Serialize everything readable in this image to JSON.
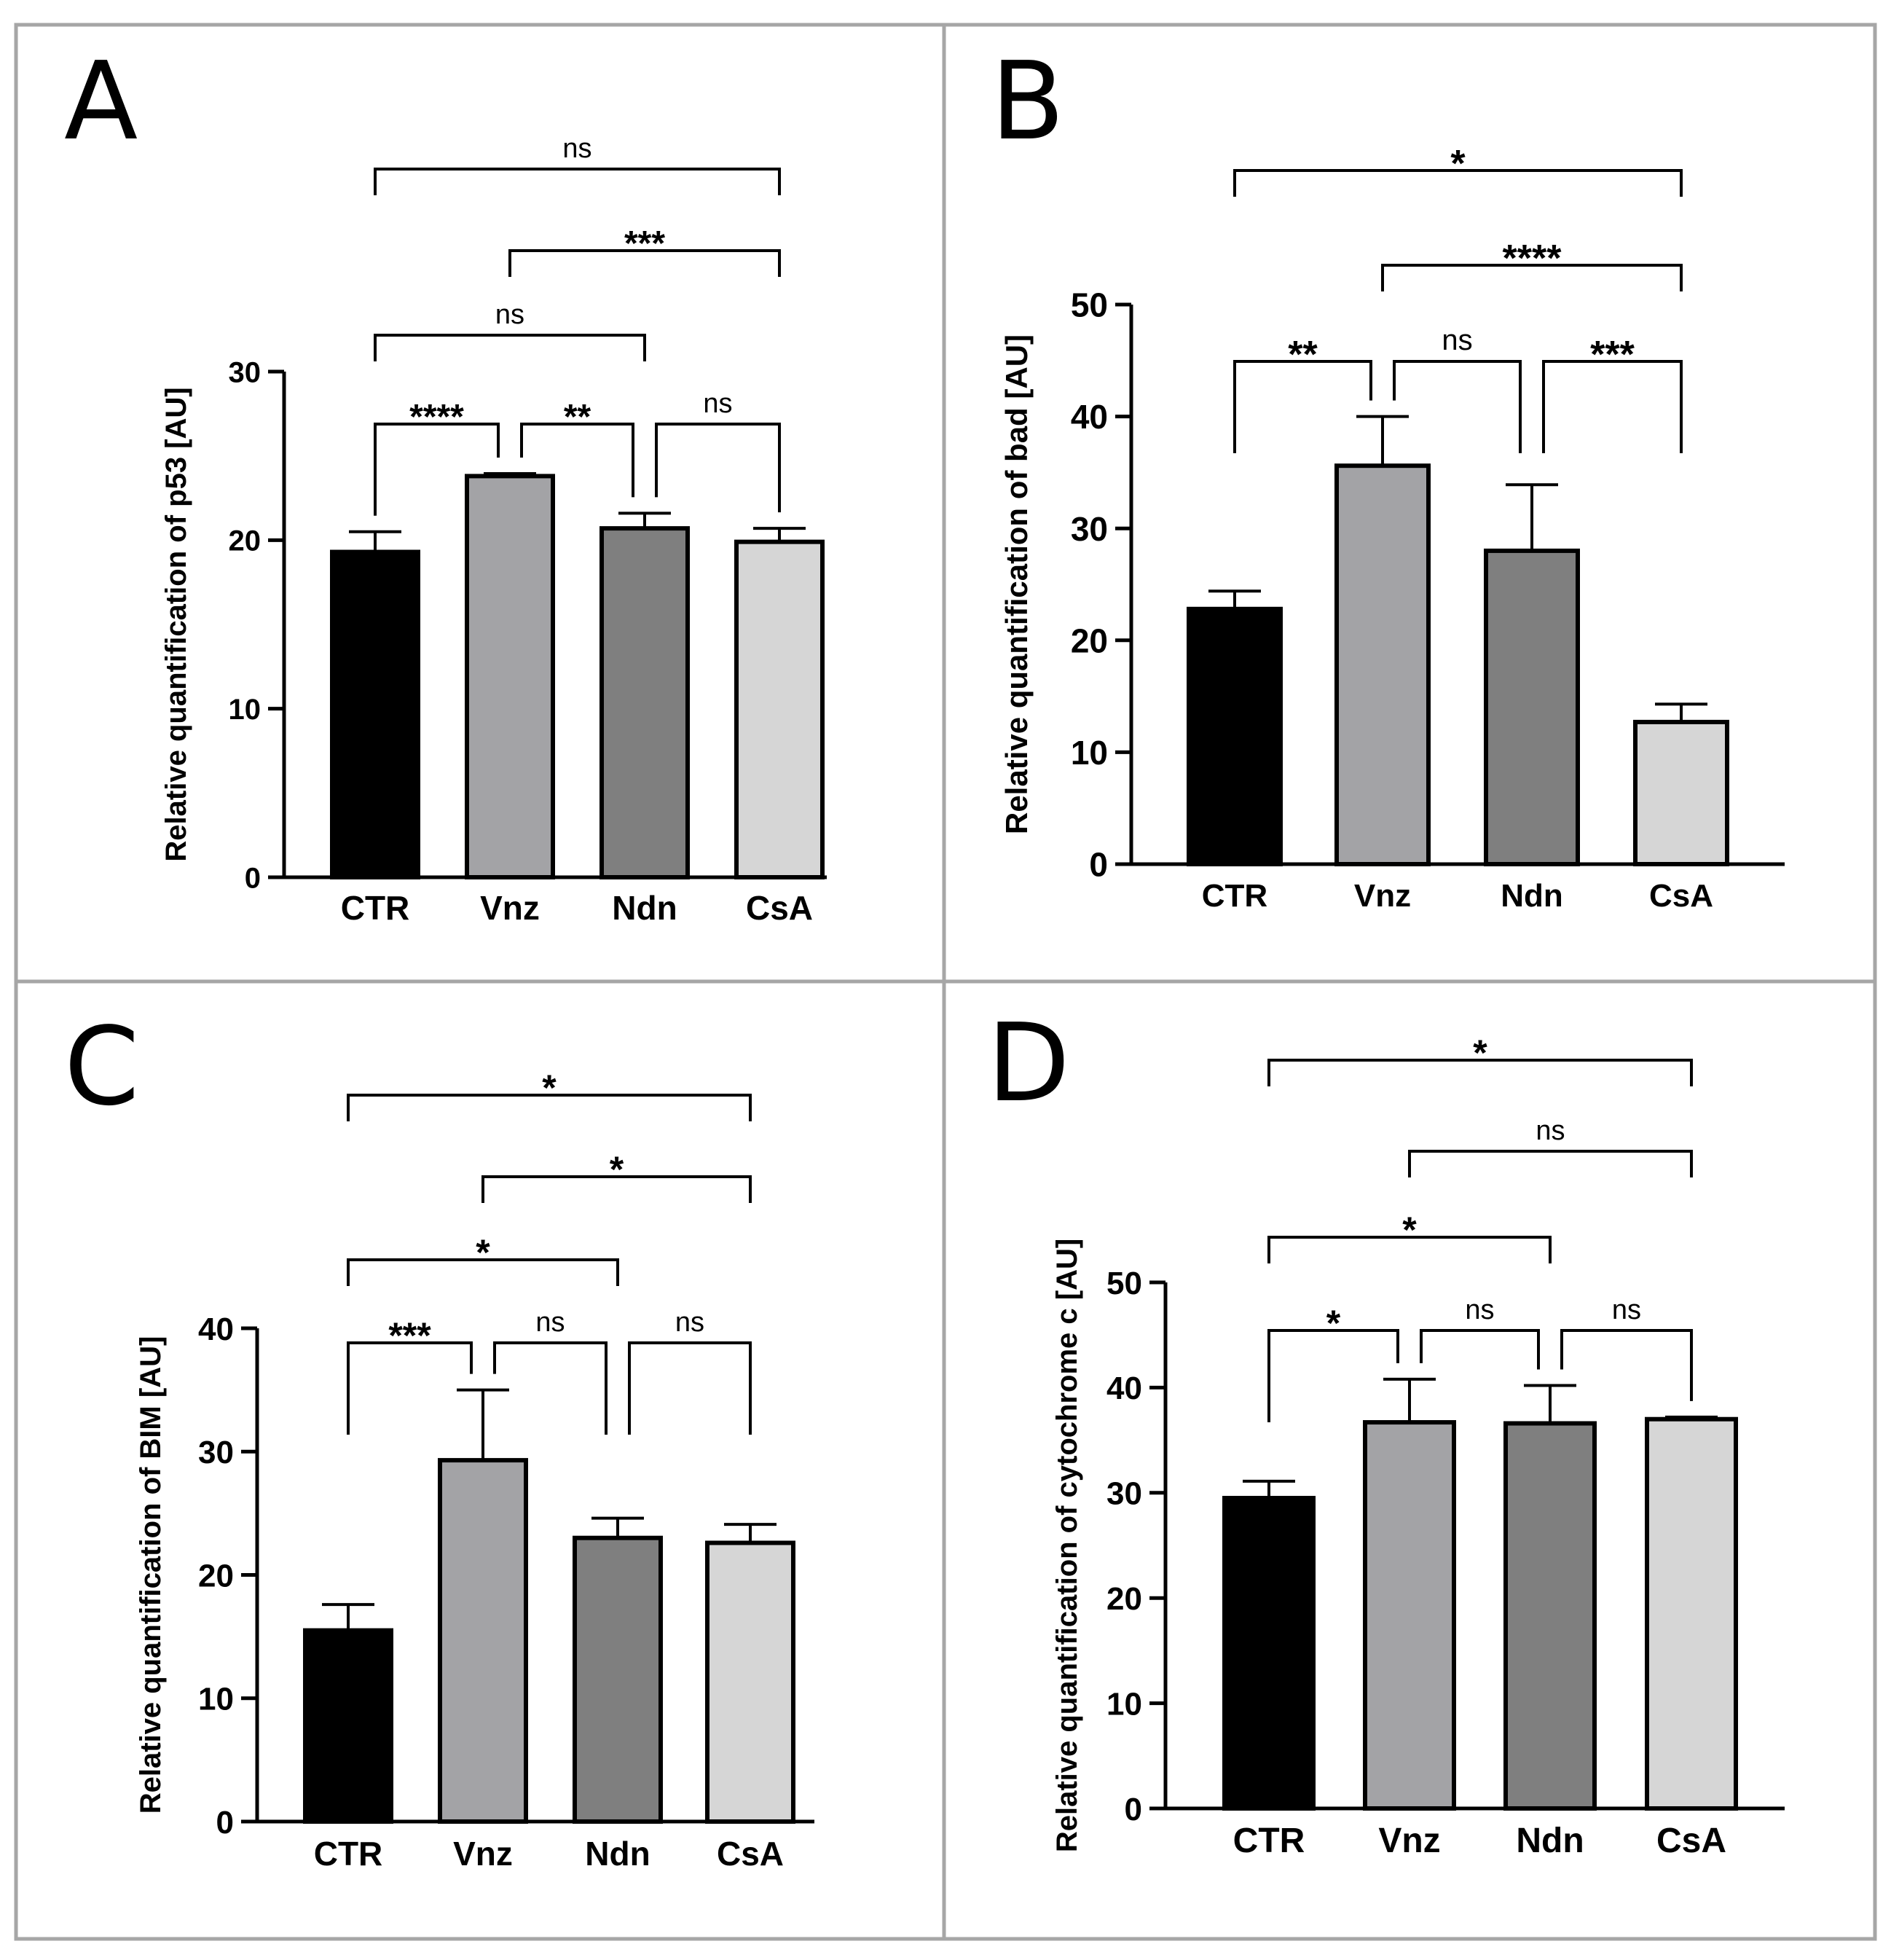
{
  "figure": {
    "panel_border_color": "#a6a6a6",
    "bar_colors": [
      "#000000",
      "#a3a3a6",
      "#7f7f7f",
      "#d6d6d6"
    ],
    "axis_color": "#000000"
  },
  "chart_data": [
    {
      "panel": "A",
      "type": "bar",
      "categories": [
        "CTR",
        "Vnz",
        "Ndn",
        "CsA"
      ],
      "values": [
        19.3,
        23.8,
        20.7,
        19.9
      ],
      "errors": [
        1.2,
        0.15,
        0.9,
        0.8
      ],
      "ylabel": "Relative quantification of p53 [AU]",
      "ylim": [
        0,
        30
      ],
      "yticks": [
        0,
        10,
        20,
        30
      ],
      "comparisons": [
        {
          "from": 0,
          "to": 1,
          "label": "****",
          "level": 0
        },
        {
          "from": 1,
          "to": 2,
          "label": "**",
          "level": 0
        },
        {
          "from": 2,
          "to": 3,
          "label": "ns",
          "level": 0
        },
        {
          "from": 0,
          "to": 2,
          "label": "ns",
          "level": 1
        },
        {
          "from": 1,
          "to": 3,
          "label": "***",
          "level": 2
        },
        {
          "from": 0,
          "to": 3,
          "label": "ns",
          "level": 3
        }
      ]
    },
    {
      "panel": "B",
      "type": "bar",
      "categories": [
        "CTR",
        "Vnz",
        "Ndn",
        "CsA"
      ],
      "values": [
        22.8,
        35.6,
        28.0,
        12.7
      ],
      "errors": [
        1.6,
        4.4,
        5.9,
        1.6
      ],
      "ylabel": "Relative quantification of bad [AU]",
      "ylim": [
        0,
        50
      ],
      "yticks": [
        0,
        10,
        20,
        30,
        40,
        50
      ],
      "comparisons": [
        {
          "from": 0,
          "to": 1,
          "label": "**",
          "level": 0
        },
        {
          "from": 1,
          "to": 2,
          "label": "ns",
          "level": 0
        },
        {
          "from": 2,
          "to": 3,
          "label": "***",
          "level": 0
        },
        {
          "from": 1,
          "to": 3,
          "label": "****",
          "level": 1
        },
        {
          "from": 0,
          "to": 3,
          "label": "*",
          "level": 2
        }
      ]
    },
    {
      "panel": "C",
      "type": "bar",
      "categories": [
        "CTR",
        "Vnz",
        "Ndn",
        "CsA"
      ],
      "values": [
        15.5,
        29.3,
        23.0,
        22.6
      ],
      "errors": [
        2.1,
        5.7,
        1.6,
        1.5
      ],
      "ylabel": "Relative quantification of BIM [AU]",
      "ylim": [
        0,
        40
      ],
      "yticks": [
        0,
        10,
        20,
        30,
        40
      ],
      "comparisons": [
        {
          "from": 0,
          "to": 1,
          "label": "***",
          "level": 0
        },
        {
          "from": 1,
          "to": 2,
          "label": "ns",
          "level": 0
        },
        {
          "from": 2,
          "to": 3,
          "label": "ns",
          "level": 0
        },
        {
          "from": 0,
          "to": 2,
          "label": "*",
          "level": 1
        },
        {
          "from": 1,
          "to": 3,
          "label": "*",
          "level": 2
        },
        {
          "from": 0,
          "to": 3,
          "label": "*",
          "level": 3
        }
      ]
    },
    {
      "panel": "D",
      "type": "bar",
      "categories": [
        "CTR",
        "Vnz",
        "Ndn",
        "CsA"
      ],
      "values": [
        29.5,
        36.7,
        36.6,
        37.0
      ],
      "errors": [
        1.6,
        4.1,
        3.6,
        0.2
      ],
      "ylabel": "Relative quantification of cytochrome c [AU]",
      "ylim": [
        0,
        50
      ],
      "yticks": [
        0,
        10,
        20,
        30,
        40,
        50
      ],
      "comparisons": [
        {
          "from": 0,
          "to": 1,
          "label": "*",
          "level": 0
        },
        {
          "from": 1,
          "to": 2,
          "label": "ns",
          "level": 0
        },
        {
          "from": 2,
          "to": 3,
          "label": "ns",
          "level": 0
        },
        {
          "from": 0,
          "to": 2,
          "label": "*",
          "level": 1
        },
        {
          "from": 1,
          "to": 3,
          "label": "ns",
          "level": 2
        },
        {
          "from": 0,
          "to": 3,
          "label": "*",
          "level": 3
        }
      ]
    }
  ]
}
